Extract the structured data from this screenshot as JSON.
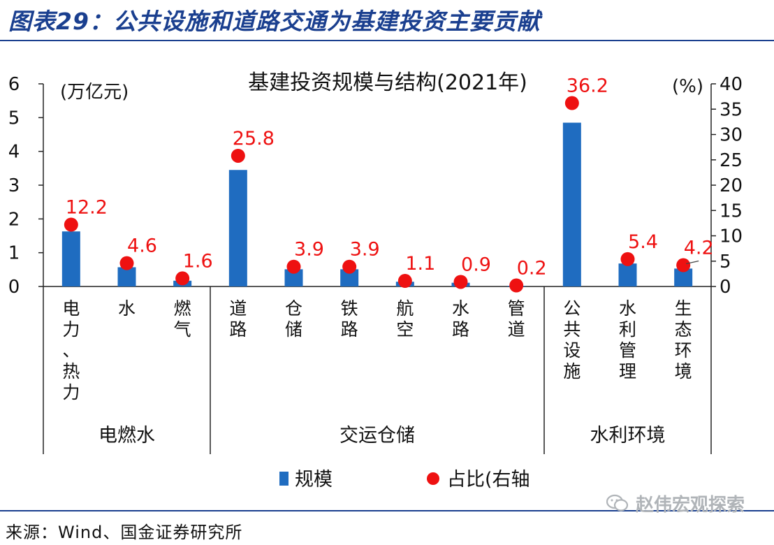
{
  "header": {
    "title": "图表29：公共设施和道路交通为基建投资主要贡献"
  },
  "chart_data": {
    "type": "bar",
    "title": "基建投资规模与结构(2021年)",
    "left_axis_unit": "(万亿元)",
    "right_axis_unit": "(%)",
    "ylim_left": [
      0,
      6
    ],
    "left_ticks": [
      "0",
      "1",
      "2",
      "3",
      "4",
      "5",
      "6"
    ],
    "ylim_right": [
      0,
      40
    ],
    "right_ticks": [
      "0",
      "5",
      "10",
      "15",
      "20",
      "25",
      "30",
      "35",
      "40"
    ],
    "categories": [
      "电力、热力",
      "水",
      "燃气",
      "道路",
      "仓储",
      "铁路",
      "航空",
      "水路",
      "管道",
      "公共设施",
      "水利管理",
      "生态环境"
    ],
    "groups": [
      {
        "label": "电燃水",
        "count": 3
      },
      {
        "label": "交运仓储",
        "count": 6
      },
      {
        "label": "水利环境",
        "count": 3
      }
    ],
    "series": [
      {
        "name": "规模",
        "axis": "left",
        "kind": "bar",
        "color": "#1f6cc0",
        "values": [
          1.63,
          0.57,
          0.17,
          3.45,
          0.51,
          0.51,
          0.14,
          0.11,
          0.02,
          4.85,
          0.68,
          0.53
        ]
      },
      {
        "name": "占比(右轴",
        "axis": "right",
        "kind": "scatter",
        "color": "#ee1111",
        "values": [
          12.2,
          4.6,
          1.6,
          25.8,
          3.9,
          3.9,
          1.1,
          0.9,
          0.2,
          36.2,
          5.4,
          4.2
        ],
        "labels": [
          "12.2",
          "4.6",
          "1.6",
          "25.8",
          "3.9",
          "3.9",
          "1.1",
          "0.9",
          "0.2",
          "36.2",
          "5.4",
          "4.2"
        ]
      }
    ],
    "legend_placement": "bottom-center",
    "grid": false
  },
  "footer": {
    "source": "来源：Wind、国金证券研究所",
    "watermark_text": "赵伟宏观探索",
    "watermark_icon": "wechat-icon"
  }
}
